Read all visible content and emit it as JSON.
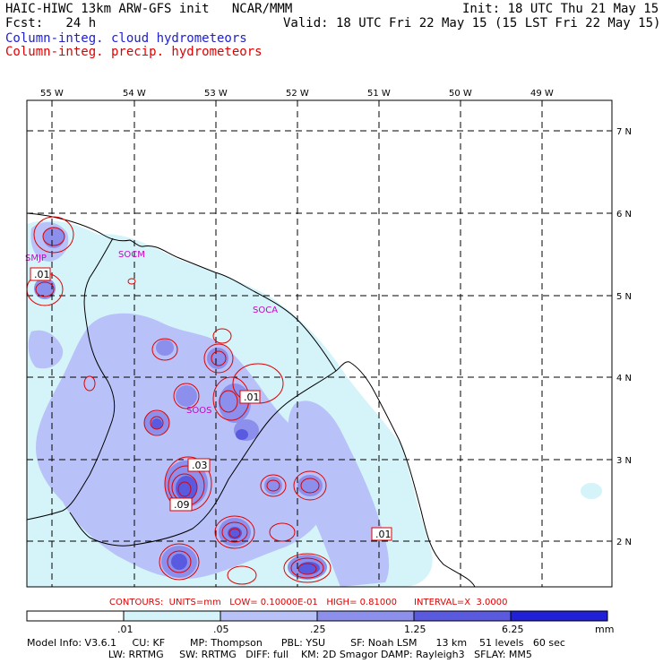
{
  "header": {
    "title": "HAIC-HIWC 13km ARW-GFS init   NCAR/MMM",
    "init": "Init: 18 UTC Thu 21 May 15",
    "fcst": "Fcst:   24 h",
    "valid": "Valid: 18 UTC Fri 22 May 15 (15 LST Fri 22 May 15)",
    "legend_cloud": "Column-integ. cloud hydrometeors",
    "legend_precip": "Column-integ. precip. hydrometeors"
  },
  "map": {
    "lon_labels": [
      "55 W",
      "54 W",
      "53 W",
      "52 W",
      "51 W",
      "50 W",
      "49 W"
    ],
    "lat_labels": [
      "7 N",
      "6 N",
      "5 N",
      "4 N",
      "3 N",
      "2 N"
    ],
    "places": [
      {
        "name": "SMJP"
      },
      {
        "name": "SOCM"
      },
      {
        "name": "SOCA"
      },
      {
        "name": "SOOS"
      }
    ],
    "contour_values": [
      ".01",
      ".01",
      ".03",
      ".09",
      ".01"
    ]
  },
  "colors": {
    "cloud_level1": "#d4f4fa",
    "cloud_level2": "#b8c2f8",
    "cloud_level3": "#8c90ec",
    "cloud_level4": "#5a5ae0",
    "cloud_level5": "#2020d8",
    "precip_contour": "#e00000",
    "place_label": "#cc00cc"
  },
  "colorbar": {
    "ticks": [
      ".01",
      ".05",
      ".25",
      "1.25",
      "6.25"
    ],
    "units": "mm"
  },
  "contour_info": "CONTOURS:  UNITS=mm   LOW= 0.10000E-01   HIGH= 0.81000      INTERVAL=X  3.0000",
  "model_info": {
    "line1": "Model Info: V3.6.1     CU: KF        MP: Thompson      PBL: YSU        SF: Noah LSM      13 km    51 levels   60 sec",
    "line2": "                          LW: RRTMG     SW: RRTMG   DIFF: full    KM: 2D Smagor DAMP: Rayleigh3   SFLAY: MM5"
  }
}
